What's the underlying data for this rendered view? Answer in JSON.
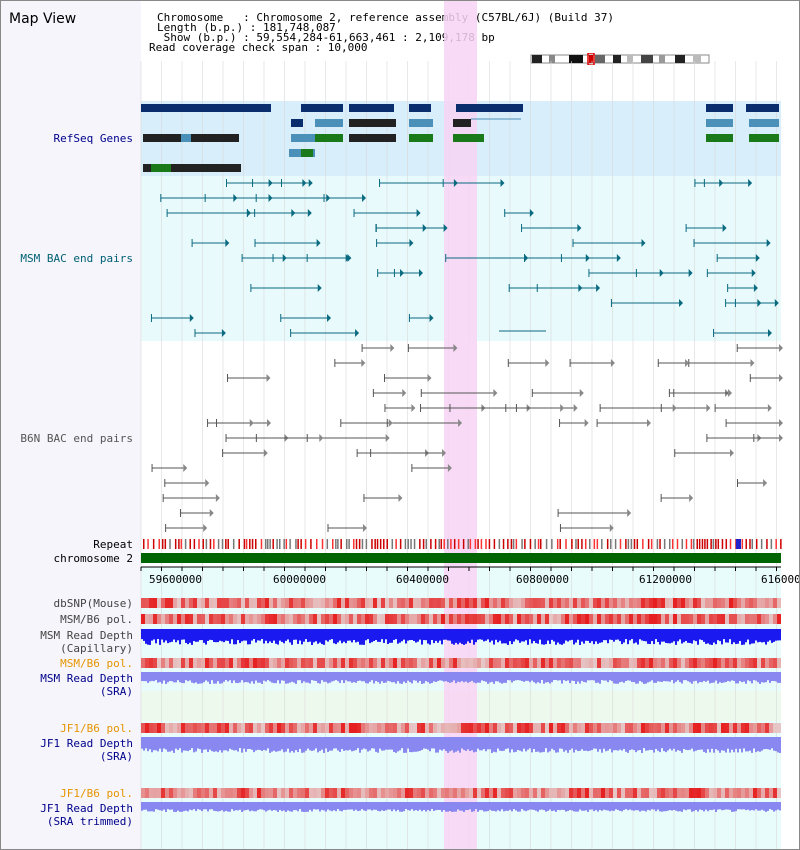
{
  "title": "Map View",
  "header": {
    "chromosome": "Chromosome   : Chromosome 2, reference assembly (C57BL/6J) (Build 37)",
    "length": "Length (b.p.) : 181,748,087",
    "show": " Show (b.p.) : 59,554,284-61,663,461 : 2,109,178 bp",
    "coverage": "Read coverage check span : 10,000"
  },
  "tracks": {
    "refseq": "RefSeq Genes",
    "msm_bac": "MSM BAC end pairs",
    "b6n_bac": "B6N BAC end pairs",
    "repeat": "Repeat",
    "chromosome": "chromosome 2",
    "dbsnp": "dbSNP(Mouse)",
    "msm_b6_pol_1": "MSM/B6 pol.",
    "msm_read_depth_cap_1": "MSM Read Depth",
    "msm_read_depth_cap_2": "(Capillary)",
    "msm_b6_pol_2": "MSM/B6 pol.",
    "msm_read_depth_sra_1": "MSM Read Depth",
    "msm_read_depth_sra_2": "(SRA)",
    "jf1_b6_pol_1": "JF1/B6 pol.",
    "jf1_read_depth_sra_1": "JF1 Read Depth",
    "jf1_read_depth_sra_2": "(SRA)",
    "jf1_b6_pol_2": "JF1/B6 pol.",
    "jf1_read_depth_trim_1": "JF1 Read Depth",
    "jf1_read_depth_trim_2": "(SRA trimmed)"
  },
  "ruler": [
    "59600000",
    "60000000",
    "60400000",
    "60800000",
    "61200000",
    "616000"
  ],
  "colors": {
    "refseq_dark": "#0a2d6e",
    "refseq_mid": "#4a90b8",
    "refseq_green": "#1a7a1a",
    "msm_line": "#0a6a80",
    "b6n_line": "#555555",
    "highlight": "#f8d4f4",
    "chromosome_bar": "#006400",
    "read_depth_dark": "#1a1af0",
    "read_depth_light": "#8888f0",
    "pol_red": "#e05050"
  }
}
